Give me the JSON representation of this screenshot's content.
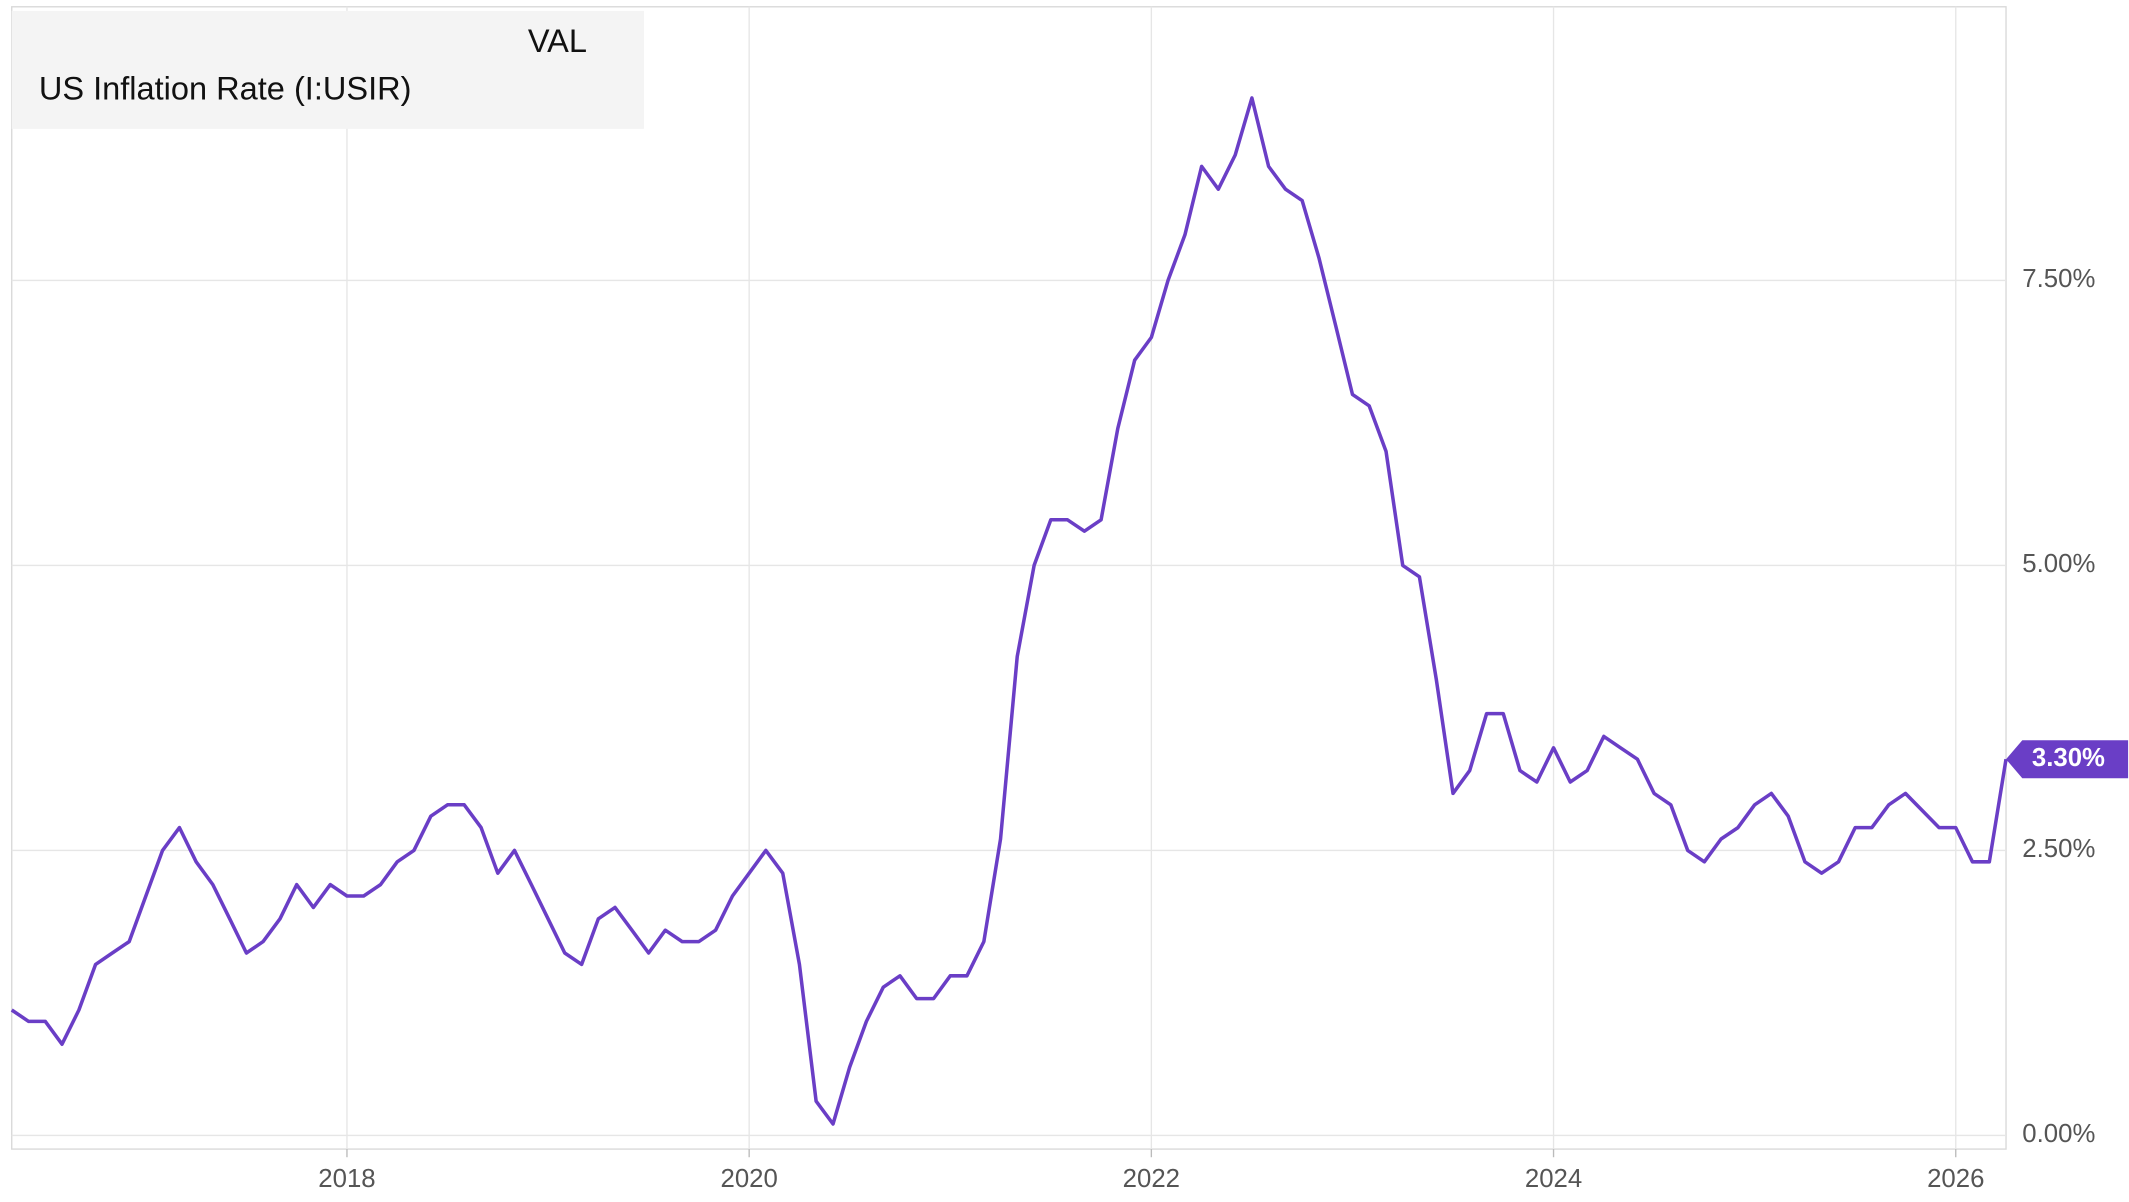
{
  "chart_data": {
    "type": "line",
    "legend_header": "VAL",
    "series": [
      {
        "name": "US Inflation Rate (I:USIR)",
        "color": "#6a3ec6",
        "x": [
          2016.333,
          2016.417,
          2016.5,
          2016.583,
          2016.667,
          2016.75,
          2016.833,
          2016.917,
          2017,
          2017.083,
          2017.167,
          2017.25,
          2017.333,
          2017.417,
          2017.5,
          2017.583,
          2017.667,
          2017.75,
          2017.833,
          2017.917,
          2018,
          2018.083,
          2018.167,
          2018.25,
          2018.333,
          2018.417,
          2018.5,
          2018.583,
          2018.667,
          2018.75,
          2018.833,
          2018.917,
          2019,
          2019.083,
          2019.167,
          2019.25,
          2019.333,
          2019.417,
          2019.5,
          2019.583,
          2019.667,
          2019.75,
          2019.833,
          2019.917,
          2020,
          2020.083,
          2020.167,
          2020.25,
          2020.333,
          2020.417,
          2020.5,
          2020.583,
          2020.667,
          2020.75,
          2020.833,
          2020.917,
          2021,
          2021.083,
          2021.167,
          2021.25,
          2021.333,
          2021.417,
          2021.5,
          2021.583,
          2021.667,
          2021.75,
          2021.833,
          2021.917,
          2022,
          2022.083,
          2022.167,
          2022.25,
          2022.333,
          2022.417,
          2022.5,
          2022.583,
          2022.667,
          2022.75,
          2022.833,
          2022.917,
          2023,
          2023.083,
          2023.167,
          2023.25,
          2023.333,
          2023.417,
          2023.5,
          2023.583,
          2023.667,
          2023.75,
          2023.833,
          2023.917,
          2024,
          2024.083,
          2024.167,
          2024.25,
          2024.333,
          2024.417,
          2024.5,
          2024.583,
          2024.667,
          2024.75,
          2024.833,
          2024.917,
          2025,
          2025.083,
          2025.167,
          2025.25,
          2025.333,
          2025.417,
          2025.5,
          2025.583,
          2025.667,
          2025.75,
          2025.917,
          2026,
          2026.083,
          2026.167,
          2026.25
        ],
        "values": [
          1.1,
          1.0,
          1.0,
          0.8,
          1.1,
          1.5,
          1.6,
          1.7,
          2.1,
          2.5,
          2.7,
          2.4,
          2.2,
          1.9,
          1.6,
          1.7,
          1.9,
          2.2,
          2.0,
          2.2,
          2.1,
          2.1,
          2.2,
          2.4,
          2.5,
          2.8,
          2.9,
          2.9,
          2.7,
          2.3,
          2.5,
          2.2,
          1.9,
          1.6,
          1.5,
          1.9,
          2.0,
          1.8,
          1.6,
          1.8,
          1.7,
          1.7,
          1.8,
          2.1,
          2.3,
          2.5,
          2.3,
          1.5,
          0.3,
          0.1,
          0.6,
          1.0,
          1.3,
          1.4,
          1.2,
          1.2,
          1.4,
          1.4,
          1.7,
          2.6,
          4.2,
          5.0,
          5.4,
          5.4,
          5.3,
          5.4,
          6.2,
          6.8,
          7.0,
          7.5,
          7.9,
          8.5,
          8.3,
          8.6,
          9.1,
          8.5,
          8.3,
          8.2,
          7.7,
          7.1,
          6.5,
          6.4,
          6.0,
          5.0,
          4.9,
          4.0,
          3.0,
          3.2,
          3.7,
          3.7,
          3.2,
          3.1,
          3.4,
          3.1,
          3.2,
          3.5,
          3.4,
          3.3,
          3.0,
          2.9,
          2.5,
          2.4,
          2.6,
          2.7,
          2.9,
          3.0,
          2.8,
          2.4,
          2.3,
          2.4,
          2.7,
          2.7,
          2.9,
          3.0,
          2.7,
          2.7,
          2.4,
          2.4,
          3.3
        ],
        "value_labels": [
          null,
          null,
          null,
          null,
          null,
          null,
          null,
          null,
          null,
          null,
          null,
          null,
          null,
          null,
          null,
          null,
          null,
          null,
          null,
          null,
          null,
          null,
          null,
          null,
          null,
          null,
          null,
          null,
          null,
          null,
          null,
          null,
          null,
          null,
          null,
          null,
          null,
          null,
          null,
          null,
          null,
          null,
          null,
          null,
          null,
          null,
          null,
          null,
          null,
          null,
          null,
          null,
          null,
          null,
          null,
          null,
          null,
          null,
          null,
          null,
          null,
          null,
          null,
          null,
          null,
          null,
          null,
          null,
          null,
          null,
          null,
          null,
          null,
          null,
          null,
          null,
          null,
          null,
          null,
          null,
          null,
          null,
          null,
          null,
          null,
          null,
          null,
          null,
          null,
          null,
          null,
          null,
          null,
          null,
          null,
          null,
          null,
          null,
          null,
          null,
          null,
          null,
          null,
          null,
          null,
          null,
          null,
          null,
          null,
          null,
          null,
          null,
          null,
          null,
          null,
          null,
          null,
          null,
          "3.30%"
        ]
      }
    ],
    "xlim": [
      2016.333,
      2026.25
    ],
    "xticks": [
      2018,
      2020,
      2022,
      2024,
      2026
    ],
    "ylim": [
      -0.12,
      9.9
    ],
    "yticks": [
      {
        "value": 0,
        "label": "0.00%"
      },
      {
        "value": 2.5,
        "label": "2.50%"
      },
      {
        "value": 5,
        "label": "5.00%"
      },
      {
        "value": 7.5,
        "label": "7.50%"
      }
    ],
    "grid": true
  }
}
